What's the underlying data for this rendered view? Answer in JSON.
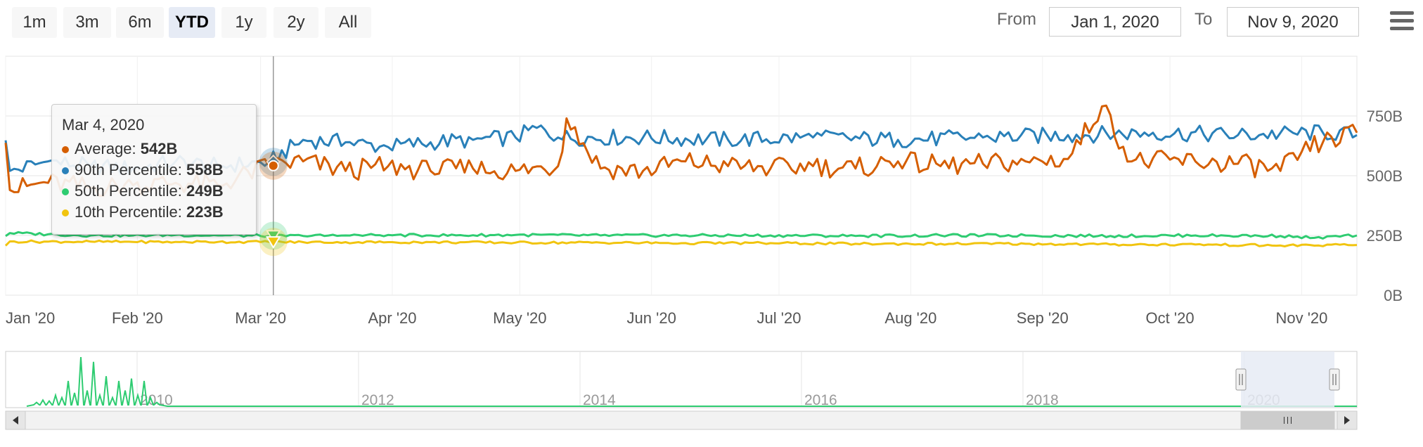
{
  "range_selector": {
    "buttons": [
      "1m",
      "3m",
      "6m",
      "YTD",
      "1y",
      "2y",
      "All"
    ],
    "active": "YTD"
  },
  "date_range": {
    "from_label": "From",
    "from_value": "Jan 1, 2020",
    "to_label": "To",
    "to_value": "Nov 9, 2020"
  },
  "tooltip": {
    "date": "Mar 4, 2020",
    "rows": [
      {
        "label": "Average:",
        "value": "542B",
        "color": "#d55e00"
      },
      {
        "label": "90th Percentile:",
        "value": "558B",
        "color": "#2980b9"
      },
      {
        "label": "50th Percentile:",
        "value": "249B",
        "color": "#2ecc71"
      },
      {
        "label": "10th Percentile:",
        "value": "223B",
        "color": "#f1c40f"
      }
    ]
  },
  "navigator": {
    "year_labels": [
      "2010",
      "2012",
      "2014",
      "2016",
      "2018",
      "2020"
    ],
    "peaks": [
      0.05,
      0.1,
      0.08,
      0.2,
      0.15,
      0.5,
      0.25,
      1.0,
      0.3,
      0.9,
      0.2,
      0.6,
      0.15,
      0.5,
      0.3,
      0.55,
      0.2,
      0.5,
      0.15,
      0.05
    ]
  },
  "chart_data": {
    "type": "line",
    "x_start": "2020-01-01",
    "x_end": "2020-11-09",
    "x_tick_labels": [
      "Jan '20",
      "Feb '20",
      "Mar '20",
      "Apr '20",
      "May '20",
      "Jun '20",
      "Jul '20",
      "Aug '20",
      "Sep '20",
      "Oct '20",
      "Nov '20"
    ],
    "y_tick_labels": [
      "0B",
      "250B",
      "500B",
      "750B"
    ],
    "ylim": [
      0,
      1000
    ],
    "highlight_date": "2020-03-04",
    "series": [
      {
        "name": "90th Percentile",
        "color": "#2980b9",
        "marker": "diamond",
        "values": [
          [
            1,
            520
          ],
          [
            10,
            560
          ],
          [
            20,
            540
          ],
          [
            30,
            530
          ],
          [
            40,
            560
          ],
          [
            50,
            540
          ],
          [
            62,
            558
          ],
          [
            70,
            650
          ],
          [
            80,
            640
          ],
          [
            90,
            620
          ],
          [
            100,
            640
          ],
          [
            110,
            650
          ],
          [
            120,
            660
          ],
          [
            125,
            700
          ],
          [
            130,
            660
          ],
          [
            150,
            660
          ],
          [
            170,
            650
          ],
          [
            190,
            660
          ],
          [
            210,
            650
          ],
          [
            230,
            660
          ],
          [
            250,
            670
          ],
          [
            270,
            680
          ],
          [
            290,
            670
          ],
          [
            310,
            680
          ],
          [
            318,
            670
          ]
        ]
      },
      {
        "name": "Average",
        "color": "#d55e00",
        "marker": "circle",
        "values": [
          [
            1,
            440
          ],
          [
            10,
            470
          ],
          [
            20,
            450
          ],
          [
            30,
            460
          ],
          [
            40,
            470
          ],
          [
            50,
            460
          ],
          [
            62,
            542
          ],
          [
            70,
            560
          ],
          [
            80,
            520
          ],
          [
            90,
            540
          ],
          [
            100,
            520
          ],
          [
            110,
            530
          ],
          [
            120,
            520
          ],
          [
            130,
            540
          ],
          [
            132,
            740
          ],
          [
            140,
            530
          ],
          [
            150,
            520
          ],
          [
            160,
            560
          ],
          [
            170,
            540
          ],
          [
            180,
            530
          ],
          [
            190,
            540
          ],
          [
            200,
            530
          ],
          [
            210,
            560
          ],
          [
            220,
            540
          ],
          [
            230,
            550
          ],
          [
            240,
            560
          ],
          [
            250,
            570
          ],
          [
            258,
            790
          ],
          [
            265,
            560
          ],
          [
            280,
            560
          ],
          [
            290,
            550
          ],
          [
            300,
            520
          ],
          [
            305,
            600
          ],
          [
            310,
            640
          ],
          [
            318,
            680
          ]
        ]
      },
      {
        "name": "50th Percentile",
        "color": "#2ecc71",
        "marker": "triangle-down",
        "values": [
          [
            1,
            260
          ],
          [
            10,
            255
          ],
          [
            20,
            250
          ],
          [
            30,
            250
          ],
          [
            40,
            252
          ],
          [
            50,
            250
          ],
          [
            62,
            249
          ],
          [
            70,
            248
          ],
          [
            80,
            250
          ],
          [
            90,
            252
          ],
          [
            100,
            250
          ],
          [
            120,
            252
          ],
          [
            140,
            250
          ],
          [
            160,
            250
          ],
          [
            180,
            250
          ],
          [
            200,
            248
          ],
          [
            220,
            250
          ],
          [
            240,
            250
          ],
          [
            260,
            248
          ],
          [
            280,
            250
          ],
          [
            300,
            248
          ],
          [
            308,
            240
          ],
          [
            318,
            250
          ]
        ]
      },
      {
        "name": "10th Percentile",
        "color": "#f1c40f",
        "marker": "triangle-down",
        "values": [
          [
            1,
            225
          ],
          [
            10,
            224
          ],
          [
            20,
            224
          ],
          [
            30,
            223
          ],
          [
            40,
            223
          ],
          [
            50,
            223
          ],
          [
            62,
            223
          ],
          [
            70,
            222
          ],
          [
            80,
            222
          ],
          [
            90,
            222
          ],
          [
            100,
            222
          ],
          [
            120,
            220
          ],
          [
            140,
            220
          ],
          [
            160,
            218
          ],
          [
            180,
            218
          ],
          [
            200,
            215
          ],
          [
            220,
            215
          ],
          [
            240,
            215
          ],
          [
            260,
            212
          ],
          [
            280,
            212
          ],
          [
            300,
            208
          ],
          [
            318,
            210
          ]
        ]
      }
    ]
  }
}
